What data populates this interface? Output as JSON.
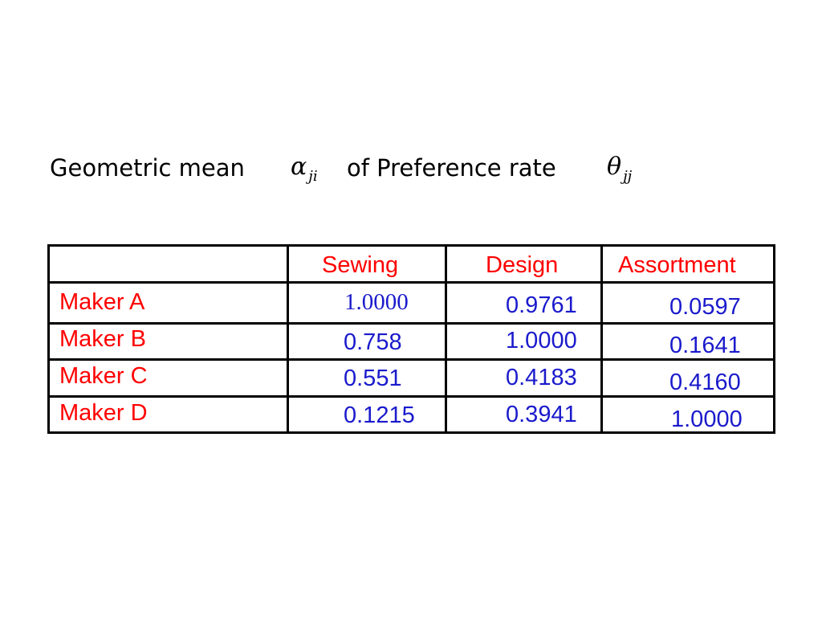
{
  "title": {
    "prefix": "Geometric mean",
    "alpha_symbol": "α",
    "alpha_subscript": "ji",
    "middle": "of Preference rate",
    "theta_symbol": "θ",
    "theta_subscript": "jj"
  },
  "table": {
    "columns": [
      "",
      "Sewing",
      "Design",
      "Assortment"
    ],
    "rows": [
      {
        "label": "Maker A",
        "values": [
          "1.0000",
          "0.9761",
          "0.0597"
        ]
      },
      {
        "label": "Maker B",
        "values": [
          "0.758",
          "1.0000",
          "0.1641"
        ]
      },
      {
        "label": "Maker C",
        "values": [
          "0.551",
          "0.4183",
          "0.4160"
        ]
      },
      {
        "label": "Maker D",
        "values": [
          "0.1215",
          "0.3941",
          "1.0000"
        ]
      }
    ]
  },
  "colors": {
    "header_text": "#ff0000",
    "row_label_text": "#ff0000",
    "value_text": "#1a1acc",
    "grid": "#000000"
  }
}
